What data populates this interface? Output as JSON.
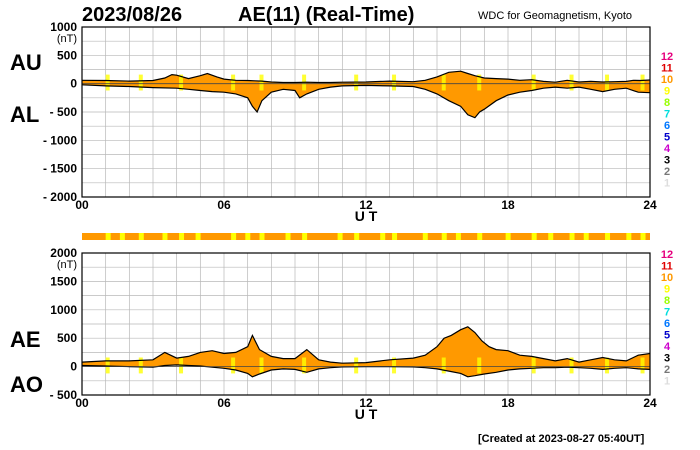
{
  "header": {
    "date": "2023/08/26",
    "title": "AE(11) (Real-Time)",
    "source": "WDC for Geomagnetism, Kyoto"
  },
  "footer": {
    "created": "[Created at 2023-08-27 05:40UT]"
  },
  "legend": {
    "labels": [
      "12",
      "11",
      "10",
      "9",
      "8",
      "7",
      "6",
      "5",
      "4",
      "3",
      "2",
      "1"
    ],
    "colors": [
      "#e6007e",
      "#e00000",
      "#ff9900",
      "#ffff00",
      "#99ff00",
      "#00dddd",
      "#0077ff",
      "#0000cc",
      "#cc00cc",
      "#000000",
      "#777777",
      "#dddddd"
    ]
  },
  "chart_data": [
    {
      "type": "area",
      "name": "AU/AL",
      "title": "AU / AL",
      "label_upper": "AU",
      "label_lower": "AL",
      "unit": "(nT)",
      "xlabel": "U T",
      "xlim": [
        0,
        24
      ],
      "ylim": [
        -2000,
        1000
      ],
      "xticks": [
        0,
        6,
        12,
        18,
        24
      ],
      "xtick_labels": [
        "00",
        "06",
        "12",
        "18",
        "24"
      ],
      "yticks": [
        1000,
        500,
        0,
        -500,
        -1000,
        -1500,
        -2000
      ],
      "ytick_labels": [
        "1000",
        "500",
        "0",
        "- 500",
        "- 1000",
        "- 1500",
        "- 2000"
      ],
      "fill_color": "#ff9900",
      "series": [
        {
          "name": "AU",
          "x": [
            0,
            1,
            2,
            3,
            3.5,
            3.8,
            4,
            4.5,
            5,
            5.3,
            5.7,
            6,
            6.5,
            7,
            7.3,
            7.6,
            8,
            8.5,
            9,
            9.5,
            10,
            10.5,
            11,
            12,
            13,
            14,
            14.5,
            15,
            15.5,
            16,
            16.3,
            16.6,
            17,
            17.5,
            18,
            18.5,
            19,
            19.5,
            20,
            20.5,
            21,
            21.5,
            22,
            22.5,
            23,
            23.3,
            23.6,
            24
          ],
          "values": [
            60,
            55,
            45,
            55,
            100,
            160,
            150,
            90,
            140,
            180,
            120,
            80,
            60,
            55,
            50,
            45,
            30,
            20,
            20,
            25,
            20,
            20,
            25,
            30,
            45,
            35,
            60,
            120,
            200,
            220,
            180,
            140,
            100,
            90,
            80,
            60,
            70,
            40,
            25,
            60,
            30,
            40,
            30,
            35,
            40,
            60,
            55,
            65
          ]
        },
        {
          "name": "AL",
          "x": [
            0,
            1,
            2,
            3,
            4,
            4.5,
            5,
            5.5,
            6,
            6.5,
            7,
            7.2,
            7.4,
            7.6,
            8,
            8.5,
            9,
            9.2,
            9.5,
            10,
            10.5,
            11,
            12,
            13,
            14,
            14.5,
            15,
            15.5,
            16,
            16.3,
            16.6,
            16.8,
            17,
            17.5,
            18,
            18.5,
            19,
            19.5,
            20,
            20.5,
            21,
            21.5,
            22,
            22.5,
            23,
            23.5,
            24
          ],
          "values": [
            -20,
            -40,
            -50,
            -70,
            -80,
            -100,
            -120,
            -140,
            -150,
            -180,
            -250,
            -400,
            -500,
            -300,
            -150,
            -100,
            -120,
            -250,
            -180,
            -100,
            -60,
            -40,
            -30,
            -40,
            -50,
            -100,
            -180,
            -300,
            -400,
            -550,
            -600,
            -500,
            -450,
            -300,
            -200,
            -150,
            -120,
            -80,
            -60,
            -80,
            -60,
            -100,
            -140,
            -100,
            -80,
            -150,
            -160
          ]
        }
      ]
    },
    {
      "type": "area",
      "name": "AE/AO",
      "title": "AE / AO",
      "label_upper": "AE",
      "label_lower": "AO",
      "unit": "(nT)",
      "xlabel": "U T",
      "xlim": [
        0,
        24
      ],
      "ylim": [
        -500,
        2000
      ],
      "xticks": [
        0,
        6,
        12,
        18,
        24
      ],
      "xtick_labels": [
        "00",
        "06",
        "12",
        "18",
        "24"
      ],
      "yticks": [
        2000,
        1500,
        1000,
        500,
        0,
        -500
      ],
      "ytick_labels": [
        "2000",
        "1500",
        "1000",
        "500",
        "0",
        "- 500"
      ],
      "fill_color": "#ff9900",
      "series": [
        {
          "name": "AE",
          "x": [
            0,
            1,
            2,
            3,
            3.5,
            4,
            4.5,
            5,
            5.5,
            6,
            6.5,
            7,
            7.2,
            7.5,
            8,
            8.5,
            9,
            9.5,
            10,
            10.5,
            11,
            12,
            13,
            14,
            14.5,
            15,
            15.3,
            15.6,
            16,
            16.3,
            16.6,
            16.9,
            17.2,
            17.5,
            18,
            18.5,
            19,
            19.5,
            20,
            20.5,
            21,
            21.5,
            22,
            22.5,
            23,
            23.5,
            24
          ],
          "values": [
            80,
            100,
            100,
            120,
            250,
            150,
            180,
            250,
            280,
            230,
            250,
            350,
            550,
            300,
            180,
            140,
            140,
            300,
            120,
            80,
            60,
            70,
            120,
            150,
            200,
            350,
            500,
            550,
            650,
            700,
            600,
            450,
            350,
            300,
            280,
            200,
            180,
            140,
            100,
            140,
            80,
            120,
            160,
            120,
            100,
            200,
            230
          ]
        },
        {
          "name": "AO",
          "x": [
            0,
            1,
            2,
            3,
            3.5,
            4,
            4.5,
            5,
            5.5,
            6,
            6.5,
            7,
            7.2,
            7.5,
            8,
            8.5,
            9,
            9.5,
            10,
            10.5,
            11,
            12,
            13,
            14,
            14.5,
            15,
            15.5,
            16,
            16.3,
            16.6,
            17,
            17.5,
            18,
            18.5,
            19,
            19.5,
            20,
            20.5,
            21,
            21.5,
            22,
            22.5,
            23,
            23.5,
            24
          ],
          "values": [
            20,
            10,
            0,
            -10,
            20,
            30,
            20,
            10,
            -10,
            -30,
            -60,
            -120,
            -180,
            -130,
            -60,
            -40,
            -50,
            -100,
            -40,
            -20,
            -5,
            0,
            0,
            -5,
            -20,
            -40,
            -80,
            -120,
            -180,
            -160,
            -130,
            -100,
            -60,
            -40,
            -30,
            -20,
            -20,
            -10,
            -20,
            -30,
            -50,
            -30,
            -20,
            -40,
            -50
          ]
        }
      ]
    }
  ],
  "coverage_bar": {
    "name": "station-coverage",
    "base_color": "#ff9900",
    "highlight_color": "#ffff00",
    "highlight_hours": [
      1.0,
      1.6,
      2.4,
      3.4,
      4.1,
      4.8,
      6.3,
      6.9,
      7.5,
      8.6,
      9.3,
      10.8,
      11.5,
      12.6,
      13.1,
      14.4,
      15.2,
      15.8,
      16.7,
      17.9,
      19.0,
      19.7,
      20.6,
      21.2,
      22.1,
      23.0,
      23.6
    ]
  }
}
